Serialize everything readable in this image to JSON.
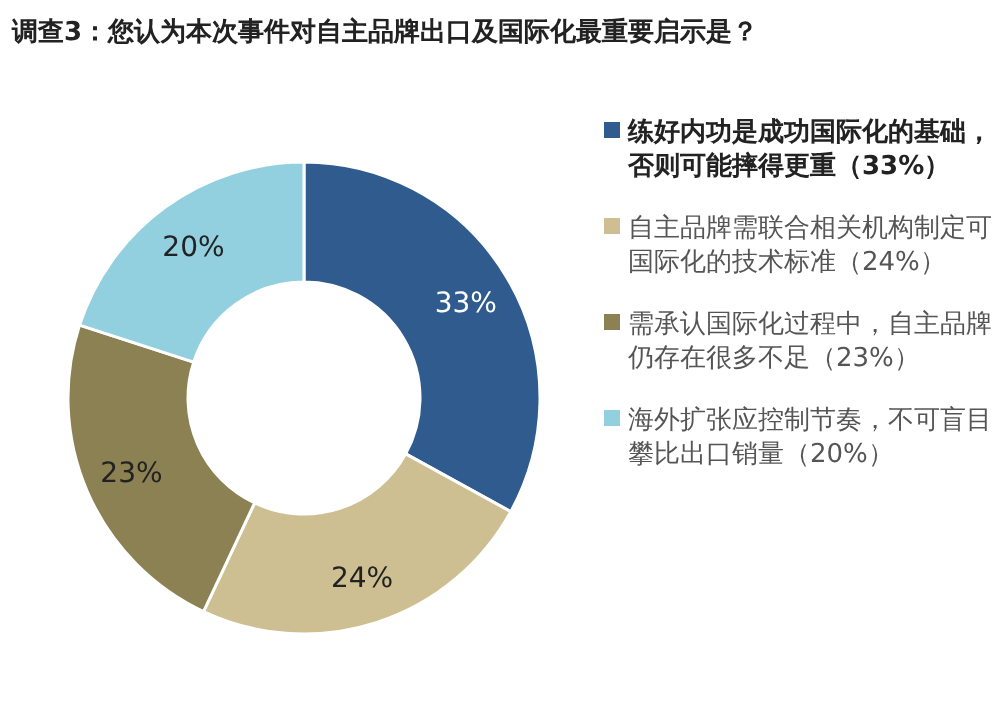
{
  "chart_data": {
    "type": "donut",
    "title": "调查3：您认为本次事件对自主品牌出口及国际化最重要启示是？",
    "categories": [
      "练好内功是成功国际化的基础，否则可能摔得更重（33%）",
      "自主品牌需联合相关机构制定可国际化的技术标准（24%）",
      "需承认国际化过程中，自主品牌仍存在很多不足（23%）",
      "海外扩张应控制节奏，不可盲目攀比出口销量（20%）"
    ],
    "values": [
      33,
      24,
      23,
      20
    ],
    "colors": [
      "#2f5b8e",
      "#cdbf92",
      "#8c8152",
      "#92d0e0"
    ],
    "value_labels": [
      "33%",
      "24%",
      "23%",
      "20%"
    ],
    "legend": "right"
  }
}
